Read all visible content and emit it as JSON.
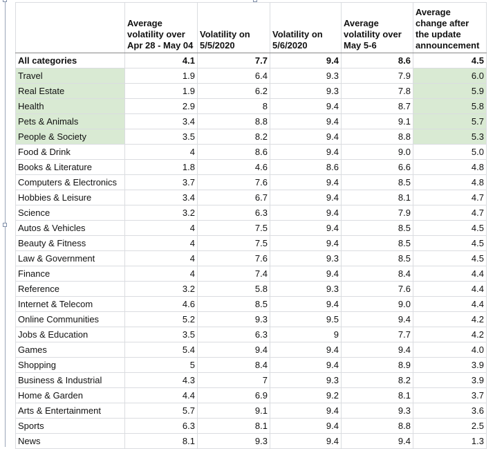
{
  "chart_data": {
    "type": "table",
    "headers": [
      "",
      "Average volatility over Apr 28 - May 04",
      "Volatility on 5/5/2020",
      "Volatility on 5/6/2020",
      "Average volatility over May 5-6",
      "Average change after the update announcement"
    ],
    "rows": [
      {
        "category": "All categories",
        "values": [
          "4.1",
          "7.7",
          "9.4",
          "8.6",
          "4.5"
        ],
        "total": true
      },
      {
        "category": "Travel",
        "values": [
          "1.9",
          "6.4",
          "9.3",
          "7.9",
          "6.0"
        ],
        "highlight": true
      },
      {
        "category": "Real Estate",
        "values": [
          "1.9",
          "6.2",
          "9.3",
          "7.8",
          "5.9"
        ],
        "highlight": true
      },
      {
        "category": "Health",
        "values": [
          "2.9",
          "8",
          "9.4",
          "8.7",
          "5.8"
        ],
        "highlight": true
      },
      {
        "category": "Pets & Animals",
        "values": [
          "3.4",
          "8.8",
          "9.4",
          "9.1",
          "5.7"
        ],
        "highlight": true
      },
      {
        "category": "People & Society",
        "values": [
          "3.5",
          "8.2",
          "9.4",
          "8.8",
          "5.3"
        ],
        "highlight": true
      },
      {
        "category": "Food & Drink",
        "values": [
          "4",
          "8.6",
          "9.4",
          "9.0",
          "5.0"
        ]
      },
      {
        "category": "Books & Literature",
        "values": [
          "1.8",
          "4.6",
          "8.6",
          "6.6",
          "4.8"
        ]
      },
      {
        "category": "Computers & Electronics",
        "values": [
          "3.7",
          "7.6",
          "9.4",
          "8.5",
          "4.8"
        ]
      },
      {
        "category": "Hobbies & Leisure",
        "values": [
          "3.4",
          "6.7",
          "9.4",
          "8.1",
          "4.7"
        ]
      },
      {
        "category": "Science",
        "values": [
          "3.2",
          "6.3",
          "9.4",
          "7.9",
          "4.7"
        ]
      },
      {
        "category": "Autos & Vehicles",
        "values": [
          "4",
          "7.5",
          "9.4",
          "8.5",
          "4.5"
        ]
      },
      {
        "category": "Beauty & Fitness",
        "values": [
          "4",
          "7.5",
          "9.4",
          "8.5",
          "4.5"
        ]
      },
      {
        "category": "Law & Government",
        "values": [
          "4",
          "7.6",
          "9.3",
          "8.5",
          "4.5"
        ]
      },
      {
        "category": "Finance",
        "values": [
          "4",
          "7.4",
          "9.4",
          "8.4",
          "4.4"
        ]
      },
      {
        "category": "Reference",
        "values": [
          "3.2",
          "5.8",
          "9.3",
          "7.6",
          "4.4"
        ]
      },
      {
        "category": "Internet & Telecom",
        "values": [
          "4.6",
          "8.5",
          "9.4",
          "9.0",
          "4.4"
        ]
      },
      {
        "category": "Online Communities",
        "values": [
          "5.2",
          "9.3",
          "9.5",
          "9.4",
          "4.2"
        ]
      },
      {
        "category": "Jobs & Education",
        "values": [
          "3.5",
          "6.3",
          "9",
          "7.7",
          "4.2"
        ]
      },
      {
        "category": "Games",
        "values": [
          "5.4",
          "9.4",
          "9.4",
          "9.4",
          "4.0"
        ]
      },
      {
        "category": "Shopping",
        "values": [
          "5",
          "8.4",
          "9.4",
          "8.9",
          "3.9"
        ]
      },
      {
        "category": "Business & Industrial",
        "values": [
          "4.3",
          "7",
          "9.3",
          "8.2",
          "3.9"
        ]
      },
      {
        "category": "Home & Garden",
        "values": [
          "4.4",
          "6.9",
          "9.2",
          "8.1",
          "3.7"
        ]
      },
      {
        "category": "Arts & Entertainment",
        "values": [
          "5.7",
          "9.1",
          "9.4",
          "9.3",
          "3.6"
        ]
      },
      {
        "category": "Sports",
        "values": [
          "6.3",
          "8.1",
          "9.4",
          "8.8",
          "2.5"
        ]
      },
      {
        "category": "News",
        "values": [
          "8.1",
          "9.3",
          "9.4",
          "9.4",
          "1.3"
        ]
      }
    ],
    "highlight_color": "#d9ead3",
    "highlighted_columns": [
      0,
      5
    ]
  }
}
